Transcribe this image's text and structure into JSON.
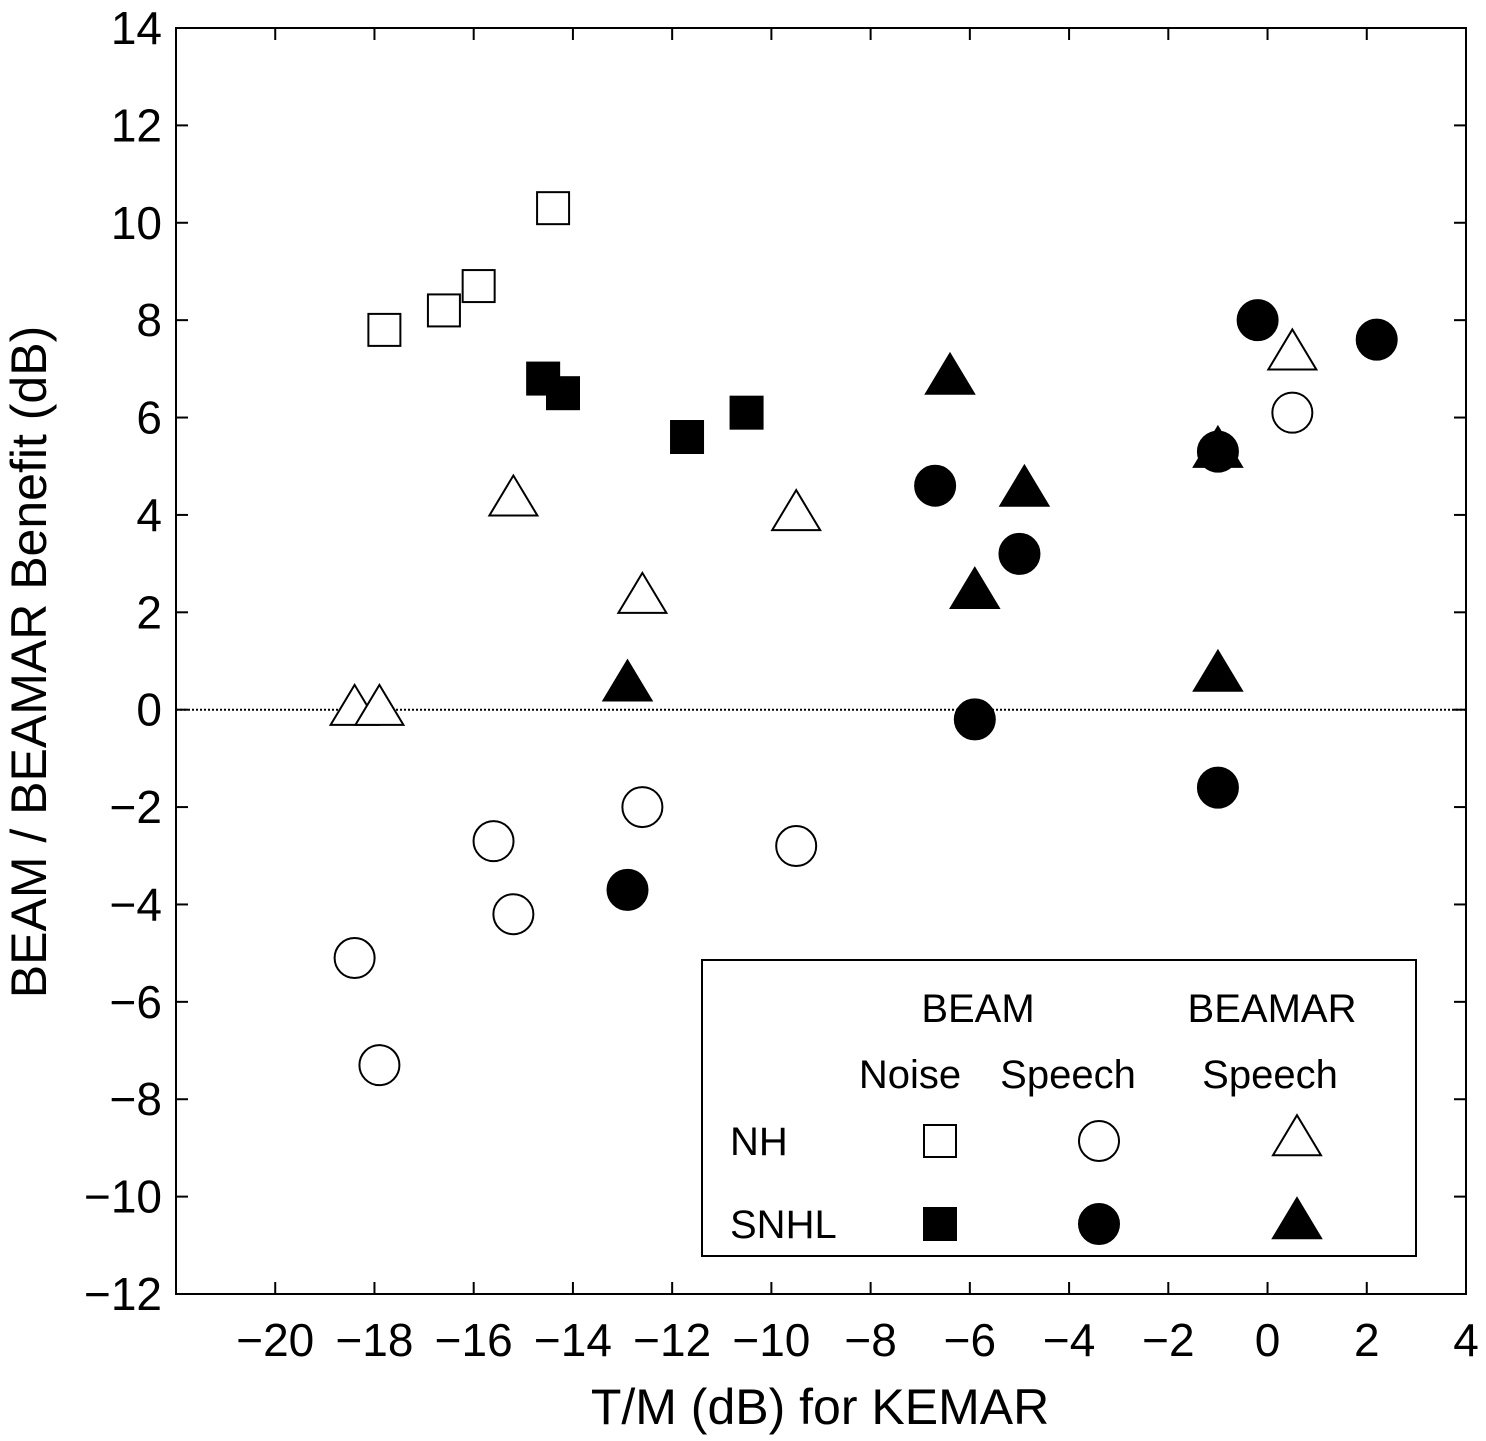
{
  "chart_data": {
    "type": "scatter",
    "xlabel": "T/M (dB) for KEMAR",
    "ylabel": "BEAM / BEAMAR Benefit (dB)",
    "xlim": [
      -22,
      4
    ],
    "ylim": [
      -12,
      14
    ],
    "x_ticks": [
      -20,
      -18,
      -16,
      -14,
      -12,
      -10,
      -8,
      -6,
      -4,
      -2,
      0,
      2,
      4
    ],
    "y_ticks": [
      -12,
      -10,
      -8,
      -6,
      -4,
      -2,
      0,
      2,
      4,
      6,
      8,
      10,
      12,
      14
    ],
    "x_tick_labels": [
      "−20",
      "−18",
      "−16",
      "−14",
      "−12",
      "−10",
      "−8",
      "−6",
      "−4",
      "−2",
      "0",
      "2",
      "4"
    ],
    "y_tick_labels": [
      "−12",
      "−10",
      "−8",
      "−6",
      "−4",
      "−2",
      "0",
      "2",
      "4",
      "6",
      "8",
      "10",
      "12",
      "14"
    ],
    "reference_line_y": 0,
    "grid": false,
    "legend": {
      "placement": "bottom-right",
      "header_beam": "BEAM",
      "header_beamar": "BEAMAR",
      "col_noise": "Noise",
      "col_speech": "Speech",
      "col_beamar_speech": "Speech",
      "row_nh": "NH",
      "row_snhl": "SNHL"
    },
    "series": [
      {
        "group": "NH",
        "condition": "BEAM Noise",
        "marker": "square",
        "filled": false,
        "points": [
          [
            -17.8,
            7.8
          ],
          [
            -16.6,
            8.2
          ],
          [
            -15.9,
            8.7
          ],
          [
            -14.4,
            10.3
          ]
        ]
      },
      {
        "group": "SNHL",
        "condition": "BEAM Noise",
        "marker": "square",
        "filled": true,
        "points": [
          [
            -14.6,
            6.8
          ],
          [
            -14.2,
            6.5
          ],
          [
            -11.7,
            5.6
          ],
          [
            -10.5,
            6.1
          ]
        ]
      },
      {
        "group": "NH",
        "condition": "BEAM Speech",
        "marker": "circle",
        "filled": false,
        "points": [
          [
            -18.4,
            -5.1
          ],
          [
            -17.9,
            -7.3
          ],
          [
            -15.6,
            -2.7
          ],
          [
            -15.2,
            -4.2
          ],
          [
            -12.6,
            -2.0
          ],
          [
            -9.5,
            -2.8
          ],
          [
            0.5,
            6.1
          ]
        ]
      },
      {
        "group": "SNHL",
        "condition": "BEAM Speech",
        "marker": "circle",
        "filled": true,
        "points": [
          [
            -12.9,
            -3.7
          ],
          [
            -6.7,
            4.6
          ],
          [
            -5.9,
            -0.2
          ],
          [
            -5.0,
            3.2
          ],
          [
            -1.0,
            5.3
          ],
          [
            -1.0,
            -1.6
          ],
          [
            -0.2,
            8.0
          ],
          [
            2.2,
            7.6
          ]
        ]
      },
      {
        "group": "NH",
        "condition": "BEAMAR Speech",
        "marker": "triangle",
        "filled": false,
        "points": [
          [
            -18.4,
            0.0
          ],
          [
            -17.9,
            0.0
          ],
          [
            -15.2,
            4.3
          ],
          [
            -12.6,
            2.3
          ],
          [
            -9.5,
            4.0
          ],
          [
            0.5,
            7.3
          ]
        ]
      },
      {
        "group": "SNHL",
        "condition": "BEAMAR Speech",
        "marker": "triangle",
        "filled": true,
        "points": [
          [
            -12.9,
            0.5
          ],
          [
            -6.4,
            6.8
          ],
          [
            -5.9,
            2.4
          ],
          [
            -4.9,
            4.5
          ],
          [
            -1.0,
            5.3
          ],
          [
            -1.0,
            0.7
          ]
        ]
      }
    ]
  }
}
